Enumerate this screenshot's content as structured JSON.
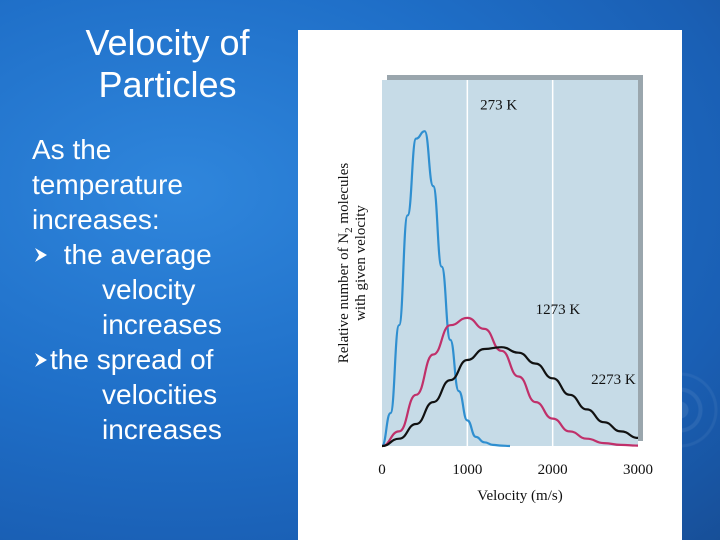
{
  "slide": {
    "title": "Velocity of Particles",
    "intro_line1": "As the",
    "intro_line2": "temperature",
    "intro_line3": "increases:",
    "bullets": [
      {
        "prefix": " the average",
        "continuation": [
          "velocity",
          "increases"
        ]
      },
      {
        "prefix": "the spread of",
        "continuation": [
          "velocities",
          "increases"
        ]
      }
    ],
    "bullet_icon": "arrowhead-bullet-icon",
    "colors": {
      "background": "#1f6fc8",
      "text": "#ffffff",
      "plot_background": "#c6dbe7"
    }
  },
  "chart_data": {
    "type": "line",
    "title": "",
    "xlabel": "Velocity (m/s)",
    "ylabel_line1": "Relative number of N",
    "ylabel_subscript": "2",
    "ylabel_line1_end": " molecules",
    "ylabel_line2": "with given velocity",
    "xlim": [
      0,
      3000
    ],
    "ylim": [
      0,
      1
    ],
    "x_ticks": [
      0,
      1000,
      2000,
      3000
    ],
    "x_tick_labels": [
      "0",
      "1000",
      "2000",
      "3000"
    ],
    "grid": {
      "vertical_at": [
        1000,
        2000
      ]
    },
    "series": [
      {
        "name": "273 K",
        "color": "#2f8fd0",
        "x": [
          0,
          100,
          200,
          300,
          400,
          500,
          600,
          700,
          800,
          900,
          1000,
          1100,
          1200,
          1300,
          1400,
          1500
        ],
        "y": [
          0,
          0.09,
          0.33,
          0.63,
          0.84,
          0.86,
          0.71,
          0.49,
          0.29,
          0.15,
          0.07,
          0.025,
          0.01,
          0.003,
          0.001,
          0
        ]
      },
      {
        "name": "1273 K",
        "color": "#c0306a",
        "x": [
          0,
          200,
          400,
          600,
          800,
          1000,
          1200,
          1400,
          1600,
          1800,
          2000,
          2200,
          2400,
          2600,
          2800,
          3000
        ],
        "y": [
          0,
          0.04,
          0.14,
          0.25,
          0.33,
          0.35,
          0.32,
          0.26,
          0.19,
          0.12,
          0.075,
          0.04,
          0.02,
          0.008,
          0.003,
          0.001
        ]
      },
      {
        "name": "2273 K",
        "color": "#111111",
        "x": [
          0,
          200,
          400,
          600,
          800,
          1000,
          1200,
          1400,
          1600,
          1800,
          2000,
          2200,
          2400,
          2600,
          2800,
          3000
        ],
        "y": [
          0,
          0.02,
          0.06,
          0.12,
          0.18,
          0.235,
          0.265,
          0.27,
          0.255,
          0.225,
          0.185,
          0.14,
          0.1,
          0.065,
          0.04,
          0.022
        ]
      }
    ],
    "annotations": [
      {
        "text": "273 K",
        "x": 1150,
        "y": 0.92
      },
      {
        "text": "1273 K",
        "x": 1800,
        "y": 0.36
      },
      {
        "text": "2273 K",
        "x": 2450,
        "y": 0.17
      }
    ]
  }
}
